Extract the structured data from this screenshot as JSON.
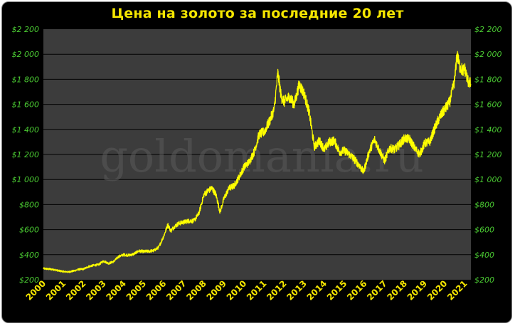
{
  "chart_data": {
    "type": "line",
    "title": "Цена на золото за последние 20 лет",
    "watermark": "goldomania.ru",
    "xlabel": "",
    "ylabel": "",
    "xlim": [
      2000,
      2021.3
    ],
    "ylim": [
      200,
      2200
    ],
    "y_ticks": [
      200,
      400,
      600,
      800,
      1000,
      1200,
      1400,
      1600,
      1800,
      2000,
      2200
    ],
    "y_tick_labels": [
      "$200",
      "$400",
      "$600",
      "$800",
      "$1 000",
      "$1 200",
      "$1 400",
      "$1 600",
      "$1 800",
      "$2 000",
      "$2 200"
    ],
    "x_ticks": [
      2000,
      2001,
      2002,
      2003,
      2004,
      2005,
      2006,
      2007,
      2008,
      2009,
      2010,
      2011,
      2012,
      2013,
      2014,
      2015,
      2016,
      2017,
      2018,
      2019,
      2020,
      2021
    ],
    "x_tick_labels": [
      "2000",
      "2001",
      "2002",
      "2003",
      "2004",
      "2005",
      "2006",
      "2007",
      "2008",
      "2009",
      "2010",
      "2011",
      "2012",
      "2013",
      "2014",
      "2015",
      "2016",
      "2017",
      "2018",
      "2019",
      "2020",
      "2021"
    ],
    "grid": "horizontal",
    "colors": {
      "background": "#000000",
      "plot_area": "#3c3c3c",
      "grid": "#000000",
      "line": "#ffff00",
      "title": "#f5e600",
      "y_tick_labels": "#4bcc33",
      "x_tick_labels": "#f5e600"
    },
    "series": [
      {
        "x": [
          2000.0,
          2000.25,
          2000.5,
          2000.75,
          2001.0,
          2001.25,
          2001.5,
          2001.75,
          2002.0,
          2002.25,
          2002.5,
          2002.75,
          2003.0,
          2003.25,
          2003.5,
          2003.75,
          2004.0,
          2004.25,
          2004.5,
          2004.75,
          2005.0,
          2005.25,
          2005.5,
          2005.75,
          2006.0,
          2006.2,
          2006.35,
          2006.5,
          2006.75,
          2007.0,
          2007.25,
          2007.5,
          2007.75,
          2008.0,
          2008.2,
          2008.4,
          2008.6,
          2008.8,
          2009.0,
          2009.25,
          2009.5,
          2009.75,
          2010.0,
          2010.25,
          2010.5,
          2010.75,
          2011.0,
          2011.25,
          2011.5,
          2011.68,
          2011.85,
          2012.0,
          2012.25,
          2012.5,
          2012.75,
          2013.0,
          2013.25,
          2013.5,
          2013.75,
          2014.0,
          2014.25,
          2014.5,
          2014.75,
          2015.0,
          2015.25,
          2015.5,
          2015.75,
          2015.95,
          2016.25,
          2016.5,
          2016.75,
          2017.0,
          2017.25,
          2017.5,
          2017.75,
          2018.0,
          2018.25,
          2018.5,
          2018.75,
          2019.0,
          2019.25,
          2019.5,
          2019.75,
          2020.0,
          2020.25,
          2020.5,
          2020.6,
          2020.75,
          2020.9,
          2021.0,
          2021.15,
          2021.3
        ],
        "values": [
          290,
          285,
          282,
          272,
          265,
          262,
          270,
          282,
          285,
          305,
          315,
          320,
          350,
          330,
          345,
          385,
          400,
          395,
          405,
          430,
          425,
          428,
          432,
          460,
          550,
          640,
          590,
          620,
          650,
          660,
          670,
          670,
          730,
          880,
          910,
          930,
          880,
          740,
          850,
          930,
          950,
          1020,
          1100,
          1140,
          1220,
          1360,
          1380,
          1460,
          1560,
          1850,
          1660,
          1620,
          1660,
          1600,
          1760,
          1680,
          1530,
          1260,
          1310,
          1240,
          1300,
          1310,
          1220,
          1230,
          1200,
          1160,
          1110,
          1060,
          1230,
          1320,
          1230,
          1150,
          1250,
          1240,
          1280,
          1330,
          1320,
          1250,
          1200,
          1290,
          1300,
          1410,
          1500,
          1560,
          1620,
          1800,
          2000,
          1900,
          1870,
          1880,
          1790,
          1760
        ]
      }
    ]
  }
}
